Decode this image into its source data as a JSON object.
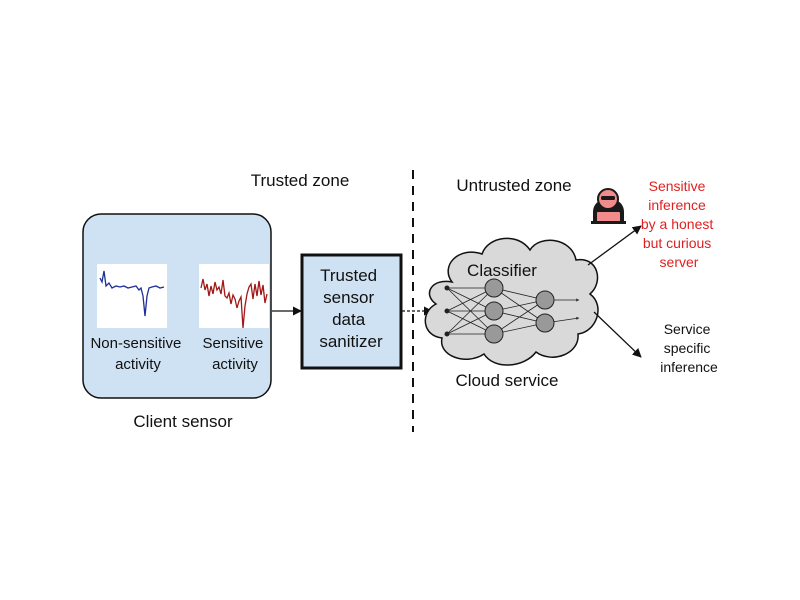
{
  "zones": {
    "trusted": "Trusted zone",
    "untrusted": "Untrusted zone"
  },
  "client": {
    "caption": "Client sensor",
    "non_sensitive": [
      "Non-sensitive",
      "activity"
    ],
    "sensitive": [
      "Sensitive",
      "activity"
    ]
  },
  "sanitizer": {
    "lines": [
      "Trusted",
      "sensor",
      "data",
      "sanitizer"
    ]
  },
  "cloud": {
    "classifier": "Classifier",
    "caption": "Cloud service"
  },
  "outputs": {
    "sensitive_inference": [
      "Sensitive",
      "inference",
      "by a honest",
      "but curious",
      "server"
    ],
    "service_inference": [
      "Service",
      "specific",
      "inference"
    ]
  },
  "colors": {
    "client_fill": "#cfe2f3",
    "cloud_fill": "#d9d9d9",
    "neuron_fill": "#999999",
    "sensitive_text": "#e02020",
    "signal_blue": "#1f2f9a",
    "signal_red": "#a01818"
  },
  "icons": {
    "attacker": "hacker-icon"
  }
}
